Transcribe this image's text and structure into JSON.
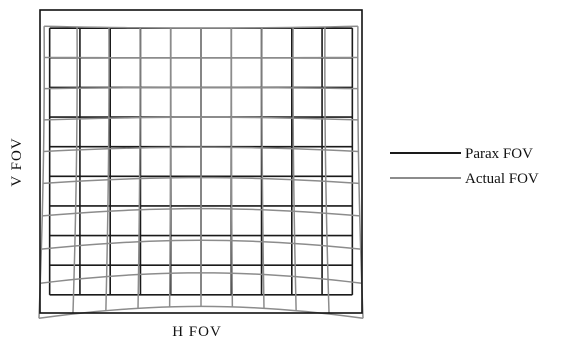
{
  "chart_data": {
    "type": "grid-distortion",
    "xlabel": "H FOV",
    "ylabel": "V FOV",
    "grid_divisions": {
      "columns": 10,
      "rows": 9
    },
    "distortion": "barrel",
    "legend": {
      "placement": "right",
      "items": [
        {
          "name": "Parax FOV",
          "color": "#1a1a1a"
        },
        {
          "name": "Actual FOV",
          "color": "#8c8c8c"
        }
      ]
    },
    "grid": true
  }
}
